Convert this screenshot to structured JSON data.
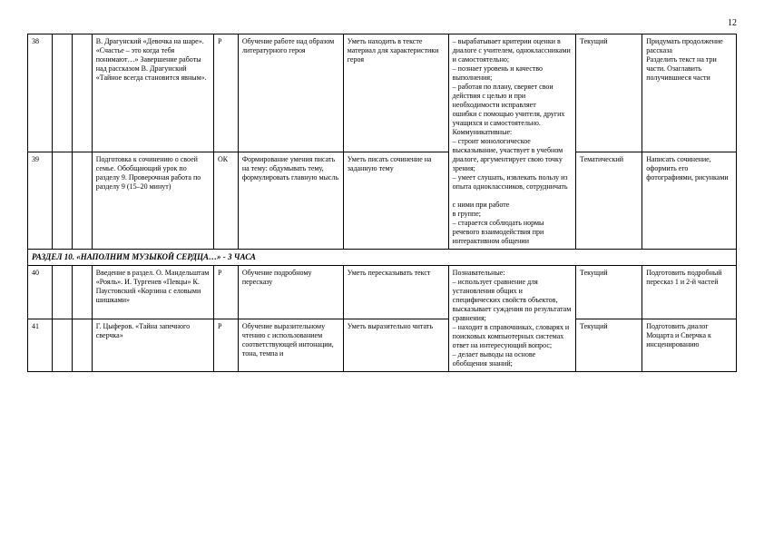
{
  "page_number": "12",
  "rows": [
    {
      "num": "38",
      "c2": "",
      "c3": "",
      "theme": "В. Драгунский «Девочка на шаре». «Счастье – это когда тебя понимают…» Завершение работы над рассказом В. Драгунский «Тайное всегда становится явным».",
      "type": "Р",
      "activity": "Обучение работе над образом литературного героя",
      "result": "Уметь находить в тексте материал для характеристики героя",
      "uud_top": "– вырабатывает критерии оценки в диалоге с учителем, одноклассниками и самостоятельно;\n– познает уровень и качество выполнения;\n– работая по плану, сверяет свои действия с целью и при необходимости исправляет",
      "control": "Текущий",
      "home": "Придумать продолжение рассказа\nРазделить текст на три части. Озаглавить получившиеся части"
    },
    {
      "num": "39",
      "c2": "",
      "c3": "",
      "theme": "Подготовка к сочинению о своей семье. Обобщающий урок по разделу 9. Проверочная работа по разделу 9 (15–20 минут)",
      "type": "ОК",
      "activity": "Формирование умения писать на тему: обдумывать тему, формулировать главную мысль",
      "result": "Уметь писать сочинение на заданную тему",
      "uud_bottom": "ошибки с помощью учителя, других учащихся и самостоятельно.\nКоммуникативные:\n– строит монологическое высказывание, участвует в учебном диалоге, аргументирует свою точку зрения;\n– умеет слушать, извлекать пользу из опыта одноклассников, сотрудничать\n\nс ними при работе\nв группе;\n– старается соблюдать нормы речевого взаимодействия при интерактивном общении",
      "control": "Тематический",
      "home": "Написать сочинение, оформить его фотографиями, рисунками"
    }
  ],
  "section": "РАЗДЕЛ 10. «НАПОЛНИМ МУЗЫКОЙ СЕРДЦА…» - 3 ЧАСА",
  "rows2": [
    {
      "num": "40",
      "c2": "",
      "c3": "",
      "theme": "Введение в раздел. О. Мандельштам «Рояль». И. Тургенев «Певцы» К. Паустовский «Корзина с еловыми шишками»",
      "type": "Р",
      "activity": "Обучение подробному пересказу",
      "result": "Уметь пересказывать текст",
      "uud_top": "Познавательные:\n– использует сравнение для установления общих и специфических свойств объектов, высказывает суждения по результатам сравнения;",
      "control": "Текущий",
      "home": "Подготовить подробный пересказ 1 и 2-й частей"
    },
    {
      "num": "41",
      "c2": "",
      "c3": "",
      "theme": "Г. Цыферов. «Тайна запечного сверчка»",
      "type": "Р",
      "activity": "Обучение выразительному чтению с использованием соответствующей интонации, тона, темпа и",
      "result": "Уметь выразительно читать",
      "uud_bottom": "– находит в справочниках, словарях и поисковых компьютерных системах ответ на интересующий вопрос;\n– делает выводы на основе обобщения знаний;",
      "control": "Текущий",
      "home": "Подготовить диалог Моцарта и Сверчка к инсценированию"
    }
  ]
}
